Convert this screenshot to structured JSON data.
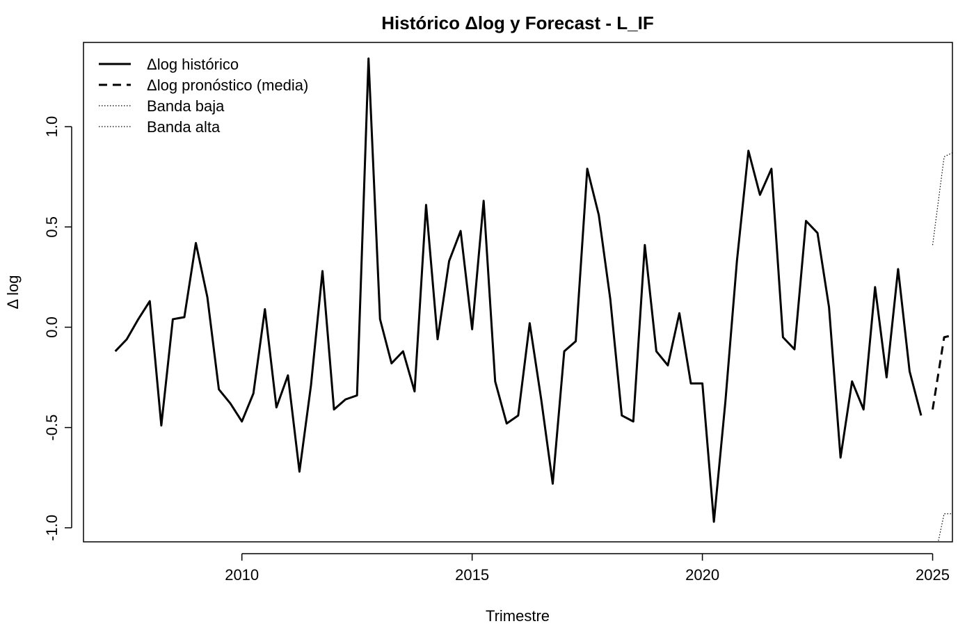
{
  "chart_data": {
    "type": "line",
    "title": "Histórico Δlog y Forecast - L_IF",
    "xlabel": "Trimestre",
    "ylabel": "Δ log",
    "xlim": [
      2006.56,
      2025.43
    ],
    "ylim": [
      -1.07,
      1.42
    ],
    "xticks": [
      2010,
      2015,
      2020,
      2025
    ],
    "xtick_labels": [
      "2010",
      "2015",
      "2020",
      "2025"
    ],
    "yticks": [
      -1.0,
      -0.5,
      0.0,
      0.5,
      1.0
    ],
    "ytick_labels": [
      "-1.0",
      "-0.5",
      "0.0",
      "0.5",
      "1.0"
    ],
    "grid": false,
    "legend_position": "top-left",
    "legend": [
      {
        "label": "Δlog histórico",
        "style": "solid"
      },
      {
        "label": "Δlog pronóstico (media)",
        "style": "dashed"
      },
      {
        "label": "Banda baja",
        "style": "dotted"
      },
      {
        "label": "Banda alta",
        "style": "dotted"
      }
    ],
    "series": [
      {
        "name": "Δlog histórico",
        "style": "solid",
        "color": "#000000",
        "x": [
          2007.25,
          2007.5,
          2007.75,
          2008.0,
          2008.25,
          2008.5,
          2008.75,
          2009.0,
          2009.25,
          2009.5,
          2009.75,
          2010.0,
          2010.25,
          2010.5,
          2010.75,
          2011.0,
          2011.25,
          2011.5,
          2011.75,
          2012.0,
          2012.25,
          2012.5,
          2012.75,
          2013.0,
          2013.25,
          2013.5,
          2013.75,
          2014.0,
          2014.25,
          2014.5,
          2014.75,
          2015.0,
          2015.25,
          2015.5,
          2015.75,
          2016.0,
          2016.25,
          2016.5,
          2016.75,
          2017.0,
          2017.25,
          2017.5,
          2017.75,
          2018.0,
          2018.25,
          2018.5,
          2018.75,
          2019.0,
          2019.25,
          2019.5,
          2019.75,
          2020.0,
          2020.25,
          2020.5,
          2020.75,
          2021.0,
          2021.25,
          2021.5,
          2021.75,
          2022.0,
          2022.25,
          2022.5,
          2022.75,
          2023.0,
          2023.25,
          2023.5,
          2023.75,
          2024.0,
          2024.25,
          2024.5,
          2024.75
        ],
        "values": [
          -0.12,
          -0.06,
          0.04,
          0.13,
          -0.49,
          0.04,
          0.05,
          0.42,
          0.15,
          -0.31,
          -0.38,
          -0.47,
          -0.33,
          0.09,
          -0.4,
          -0.24,
          -0.72,
          -0.29,
          0.28,
          -0.41,
          -0.36,
          -0.34,
          1.34,
          0.04,
          -0.18,
          -0.12,
          -0.32,
          0.61,
          -0.06,
          0.33,
          0.48,
          -0.01,
          0.63,
          -0.27,
          -0.48,
          -0.44,
          0.02,
          -0.36,
          -0.78,
          -0.12,
          -0.07,
          0.79,
          0.56,
          0.14,
          -0.44,
          -0.47,
          0.41,
          -0.12,
          -0.19,
          0.07,
          -0.28,
          -0.28,
          -0.97,
          -0.37,
          0.33,
          0.88,
          0.66,
          0.79,
          -0.05,
          -0.11,
          0.53,
          0.47,
          0.1,
          -0.65,
          -0.27,
          -0.41,
          0.2,
          -0.25,
          0.29,
          -0.22,
          -0.44
        ]
      },
      {
        "name": "Δlog pronóstico (media)",
        "style": "dashed",
        "color": "#000000",
        "x": [
          2025.0,
          2025.25,
          2025.43
        ],
        "values": [
          -0.41,
          -0.05,
          -0.04
        ]
      },
      {
        "name": "Banda baja",
        "style": "dotted",
        "color": "#000000",
        "x": [
          2025.0,
          2025.25,
          2025.43
        ],
        "values": [
          -1.2,
          -0.93,
          -0.93
        ]
      },
      {
        "name": "Banda alta",
        "style": "dotted",
        "color": "#000000",
        "x": [
          2025.0,
          2025.25,
          2025.43
        ],
        "values": [
          0.41,
          0.85,
          0.87
        ]
      }
    ]
  }
}
